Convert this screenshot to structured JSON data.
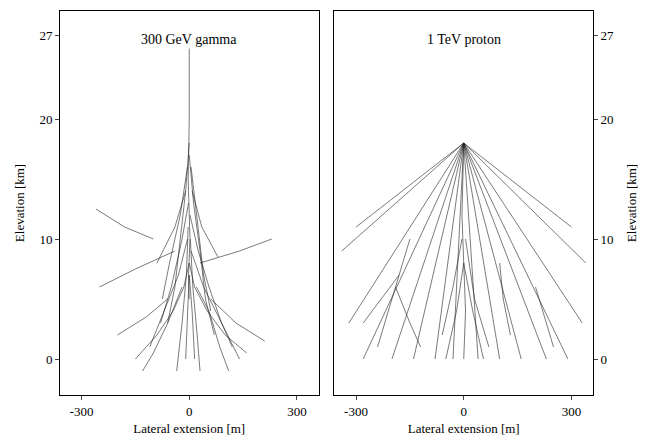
{
  "chart_data": [
    {
      "type": "line",
      "title": "300 GeV gamma",
      "x_label": "Lateral extension [m]",
      "y_label": "Elevation [km]",
      "xlim": [
        -360,
        360
      ],
      "xticks": [
        -300,
        0,
        300
      ],
      "ylim": [
        -3,
        29
      ],
      "yticks": [
        0,
        10,
        20,
        27
      ],
      "grid": false,
      "color": "#222222",
      "tracks": [
        {
          "x": [
            0,
            0,
            -3,
            2,
            -2,
            0
          ],
          "y": [
            27,
            20,
            15,
            10,
            7,
            5
          ]
        },
        {
          "x": [
            0,
            -10,
            -25,
            -40,
            -60
          ],
          "y": [
            18,
            14,
            10,
            6,
            3
          ]
        },
        {
          "x": [
            0,
            12,
            30,
            45,
            70
          ],
          "y": [
            17,
            13,
            9,
            5,
            2
          ]
        },
        {
          "x": [
            -2,
            -20,
            -50,
            -80
          ],
          "y": [
            13,
            10,
            6,
            3
          ]
        },
        {
          "x": [
            2,
            25,
            55,
            90,
            120
          ],
          "y": [
            12,
            9,
            6,
            3,
            1
          ]
        },
        {
          "x": [
            -5,
            -30,
            -70,
            -110
          ],
          "y": [
            10,
            7,
            4,
            1
          ]
        },
        {
          "x": [
            5,
            40,
            90,
            140
          ],
          "y": [
            9,
            6,
            3,
            0
          ]
        },
        {
          "x": [
            0,
            -15,
            -45,
            -90,
            -150
          ],
          "y": [
            8,
            6,
            4,
            2,
            0
          ]
        },
        {
          "x": [
            0,
            15,
            50,
            100,
            160
          ],
          "y": [
            8,
            6,
            4,
            2,
            0.5
          ]
        },
        {
          "x": [
            -3,
            -8,
            -20,
            -35
          ],
          "y": [
            11,
            7,
            3,
            -1
          ]
        },
        {
          "x": [
            3,
            10,
            22,
            30
          ],
          "y": [
            10,
            6,
            2,
            -1
          ]
        },
        {
          "x": [
            -10,
            -40,
            -90
          ],
          "y": [
            14,
            11,
            8
          ]
        },
        {
          "x": [
            8,
            35,
            80
          ],
          "y": [
            14,
            11,
            8.5
          ]
        },
        {
          "x": [
            -60,
            -120,
            -200
          ],
          "y": [
            5,
            3.5,
            2
          ]
        },
        {
          "x": [
            60,
            130,
            210
          ],
          "y": [
            5,
            3,
            1.5
          ]
        },
        {
          "x": [
            -20,
            -60,
            -100,
            -130
          ],
          "y": [
            6,
            3,
            0.5,
            -1
          ]
        },
        {
          "x": [
            20,
            55,
            85,
            110
          ],
          "y": [
            6,
            4,
            1,
            -1
          ]
        },
        {
          "x": [
            0,
            -5,
            -10
          ],
          "y": [
            7,
            3,
            0
          ]
        },
        {
          "x": [
            0,
            8,
            15
          ],
          "y": [
            7,
            4,
            0
          ]
        },
        {
          "x": [
            -40,
            -150,
            -250
          ],
          "y": [
            9,
            7.5,
            6
          ]
        },
        {
          "x": [
            30,
            140,
            230
          ],
          "y": [
            8,
            9,
            10
          ]
        },
        {
          "x": [
            -100,
            -180,
            -260
          ],
          "y": [
            10,
            11,
            12.5
          ]
        },
        {
          "x": [
            -5,
            -25,
            -55,
            -75
          ],
          "y": [
            16,
            12,
            8,
            5
          ]
        },
        {
          "x": [
            5,
            20,
            40,
            60
          ],
          "y": [
            16,
            12,
            7,
            4
          ]
        }
      ]
    },
    {
      "type": "line",
      "title": "1 TeV proton",
      "x_label": "Lateral extension [m]",
      "y_label": "Elevation [km]",
      "xlim": [
        -360,
        360
      ],
      "xticks": [
        -300,
        0,
        300
      ],
      "ylim": [
        -3,
        29
      ],
      "yticks": [
        0,
        10,
        20,
        27
      ],
      "grid": false,
      "color": "#222222",
      "tracks": [
        {
          "x": [
            0,
            -340
          ],
          "y": [
            18,
            9
          ]
        },
        {
          "x": [
            0,
            -320
          ],
          "y": [
            18,
            3
          ]
        },
        {
          "x": [
            0,
            -280
          ],
          "y": [
            18,
            0
          ]
        },
        {
          "x": [
            0,
            -200
          ],
          "y": [
            18,
            0
          ]
        },
        {
          "x": [
            0,
            -140
          ],
          "y": [
            18,
            0
          ]
        },
        {
          "x": [
            0,
            -80
          ],
          "y": [
            18,
            0
          ]
        },
        {
          "x": [
            0,
            -30
          ],
          "y": [
            18,
            0
          ]
        },
        {
          "x": [
            0,
            40
          ],
          "y": [
            18,
            0
          ]
        },
        {
          "x": [
            0,
            100
          ],
          "y": [
            18,
            0
          ]
        },
        {
          "x": [
            0,
            160
          ],
          "y": [
            18,
            0
          ]
        },
        {
          "x": [
            0,
            230
          ],
          "y": [
            18,
            0
          ]
        },
        {
          "x": [
            0,
            290
          ],
          "y": [
            18,
            0
          ]
        },
        {
          "x": [
            0,
            340
          ],
          "y": [
            18,
            8
          ]
        },
        {
          "x": [
            0,
            330
          ],
          "y": [
            18,
            3
          ]
        },
        {
          "x": [
            0,
            -300
          ],
          "y": [
            18,
            11
          ]
        },
        {
          "x": [
            0,
            300
          ],
          "y": [
            18,
            11
          ]
        },
        {
          "x": [
            -150,
            -180,
            -210,
            -240
          ],
          "y": [
            10,
            7,
            4,
            1
          ]
        },
        {
          "x": [
            -180,
            -230,
            -280
          ],
          "y": [
            7,
            5,
            3
          ]
        },
        {
          "x": [
            -190,
            -150,
            -120
          ],
          "y": [
            6,
            3,
            1
          ]
        },
        {
          "x": [
            0,
            -5,
            0,
            5,
            0
          ],
          "y": [
            18,
            12,
            8,
            4,
            0
          ]
        },
        {
          "x": [
            -5,
            -30,
            -60
          ],
          "y": [
            10,
            6,
            2
          ]
        },
        {
          "x": [
            5,
            30,
            70
          ],
          "y": [
            10,
            5,
            1
          ]
        },
        {
          "x": [
            0,
            -20,
            -50
          ],
          "y": [
            8,
            4,
            0
          ]
        },
        {
          "x": [
            0,
            25,
            55
          ],
          "y": [
            8,
            4,
            0
          ]
        },
        {
          "x": [
            100,
            110,
            130
          ],
          "y": [
            8,
            5,
            2
          ]
        },
        {
          "x": [
            200,
            220,
            250
          ],
          "y": [
            6,
            4,
            1
          ]
        }
      ]
    }
  ]
}
